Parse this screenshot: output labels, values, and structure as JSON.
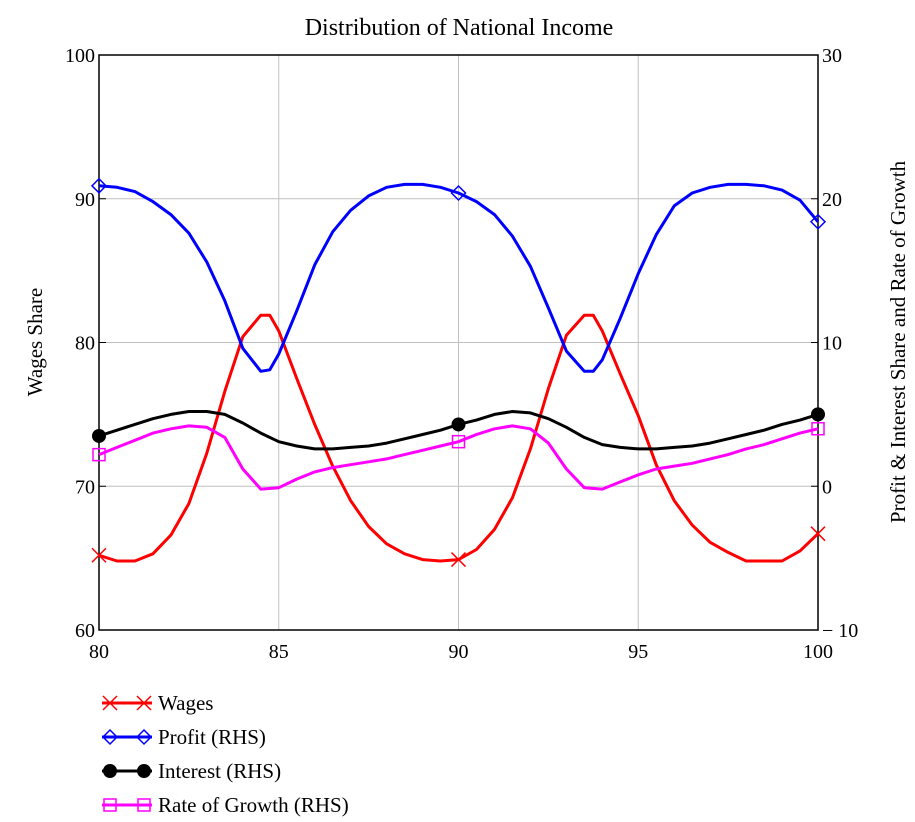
{
  "chart_data": {
    "type": "line",
    "title": "Distribution of National Income",
    "xlabel": "",
    "ylabel": "Wages Share",
    "y2label": "Profit & Interest Share and Rate of Growth",
    "xlim": [
      80,
      100
    ],
    "ylim": [
      60,
      100
    ],
    "y2lim": [
      -10,
      30
    ],
    "x_ticks": [
      "80",
      "85",
      "90",
      "95",
      "100"
    ],
    "y_ticks": [
      "60",
      "70",
      "80",
      "90",
      "100"
    ],
    "y2_ticks": [
      "− 10",
      "0",
      "10",
      "20",
      "30"
    ],
    "grid": true,
    "legend_position": "bottom-left",
    "series": [
      {
        "name": "Wages",
        "axis": "left",
        "color": "#ff0000",
        "marker": "x",
        "x": [
          80,
          80.5,
          81,
          81.5,
          82,
          82.5,
          83,
          83.5,
          84,
          84.5,
          84.75,
          85,
          85.5,
          86,
          86.5,
          87,
          87.5,
          88,
          88.5,
          89,
          89.5,
          90,
          90.5,
          91,
          91.5,
          92,
          92.5,
          93,
          93.5,
          93.75,
          94,
          94.5,
          95,
          95.5,
          96,
          96.5,
          97,
          97.5,
          98,
          98.5,
          99,
          99.5,
          100
        ],
        "y": [
          65.2,
          64.8,
          64.8,
          65.3,
          66.6,
          68.8,
          72.3,
          76.6,
          80.4,
          81.9,
          81.9,
          80.8,
          77.5,
          74.3,
          71.4,
          69.0,
          67.2,
          66.0,
          65.3,
          64.9,
          64.8,
          64.9,
          65.6,
          67.0,
          69.2,
          72.6,
          76.8,
          80.5,
          81.9,
          81.9,
          80.8,
          77.8,
          74.9,
          71.5,
          69.0,
          67.3,
          66.1,
          65.4,
          64.8,
          64.8,
          64.8,
          65.5,
          66.7
        ]
      },
      {
        "name": "Profit (RHS)",
        "axis": "right",
        "color": "#0000ff",
        "marker": "diamond",
        "x": [
          80,
          80.5,
          81,
          81.5,
          82,
          82.5,
          83,
          83.5,
          84,
          84.5,
          84.75,
          85,
          85.5,
          86,
          86.5,
          87,
          87.5,
          88,
          88.5,
          89,
          89.5,
          90,
          90.5,
          91,
          91.5,
          92,
          92.5,
          93,
          93.5,
          93.75,
          94,
          94.5,
          95,
          95.5,
          96,
          96.5,
          97,
          97.5,
          98,
          98.5,
          99,
          99.5,
          100
        ],
        "y": [
          20.9,
          20.8,
          20.5,
          19.8,
          18.9,
          17.6,
          15.6,
          12.9,
          9.6,
          8.0,
          8.1,
          9.2,
          12.2,
          15.4,
          17.7,
          19.2,
          20.2,
          20.8,
          21.0,
          21.0,
          20.8,
          20.4,
          19.8,
          18.9,
          17.4,
          15.3,
          12.4,
          9.4,
          8.0,
          8.0,
          8.8,
          11.7,
          14.8,
          17.5,
          19.5,
          20.4,
          20.8,
          21.0,
          21.0,
          20.9,
          20.6,
          19.9,
          18.4
        ]
      },
      {
        "name": "Interest (RHS)",
        "axis": "right",
        "color": "#000000",
        "marker": "circle",
        "x": [
          80,
          80.5,
          81,
          81.5,
          82,
          82.5,
          83,
          83.5,
          84,
          84.5,
          85,
          85.5,
          86,
          86.5,
          87,
          87.5,
          88,
          88.5,
          89,
          89.5,
          90,
          90.5,
          91,
          91.5,
          92,
          92.5,
          93,
          93.5,
          94,
          94.5,
          95,
          95.5,
          96,
          96.5,
          97,
          97.5,
          98,
          98.5,
          99,
          99.5,
          100
        ],
        "y": [
          3.5,
          3.9,
          4.3,
          4.7,
          5.0,
          5.2,
          5.2,
          5.0,
          4.4,
          3.7,
          3.1,
          2.8,
          2.6,
          2.6,
          2.7,
          2.8,
          3.0,
          3.3,
          3.6,
          3.9,
          4.3,
          4.6,
          5.0,
          5.2,
          5.1,
          4.7,
          4.1,
          3.4,
          2.9,
          2.7,
          2.6,
          2.6,
          2.7,
          2.8,
          3.0,
          3.3,
          3.6,
          3.9,
          4.3,
          4.6,
          5.0
        ]
      },
      {
        "name": "Rate of Growth (RHS)",
        "axis": "right",
        "color": "#ff00ff",
        "marker": "square",
        "x": [
          80,
          80.5,
          81,
          81.5,
          82,
          82.5,
          83,
          83.5,
          84,
          84.5,
          85,
          85.5,
          86,
          86.5,
          87,
          87.5,
          88,
          88.5,
          89,
          89.5,
          90,
          90.5,
          91,
          91.5,
          92,
          92.5,
          93,
          93.5,
          94,
          94.5,
          95,
          95.5,
          96,
          96.5,
          97,
          97.5,
          98,
          98.5,
          99,
          99.5,
          100
        ],
        "y": [
          2.2,
          2.7,
          3.2,
          3.7,
          4.0,
          4.2,
          4.1,
          3.4,
          1.2,
          -0.2,
          -0.1,
          0.5,
          1.0,
          1.3,
          1.5,
          1.7,
          1.9,
          2.2,
          2.5,
          2.8,
          3.1,
          3.6,
          4.0,
          4.2,
          4.0,
          3.0,
          1.2,
          -0.1,
          -0.2,
          0.3,
          0.8,
          1.2,
          1.4,
          1.6,
          1.9,
          2.2,
          2.6,
          2.9,
          3.3,
          3.7,
          4.0
        ]
      }
    ]
  }
}
